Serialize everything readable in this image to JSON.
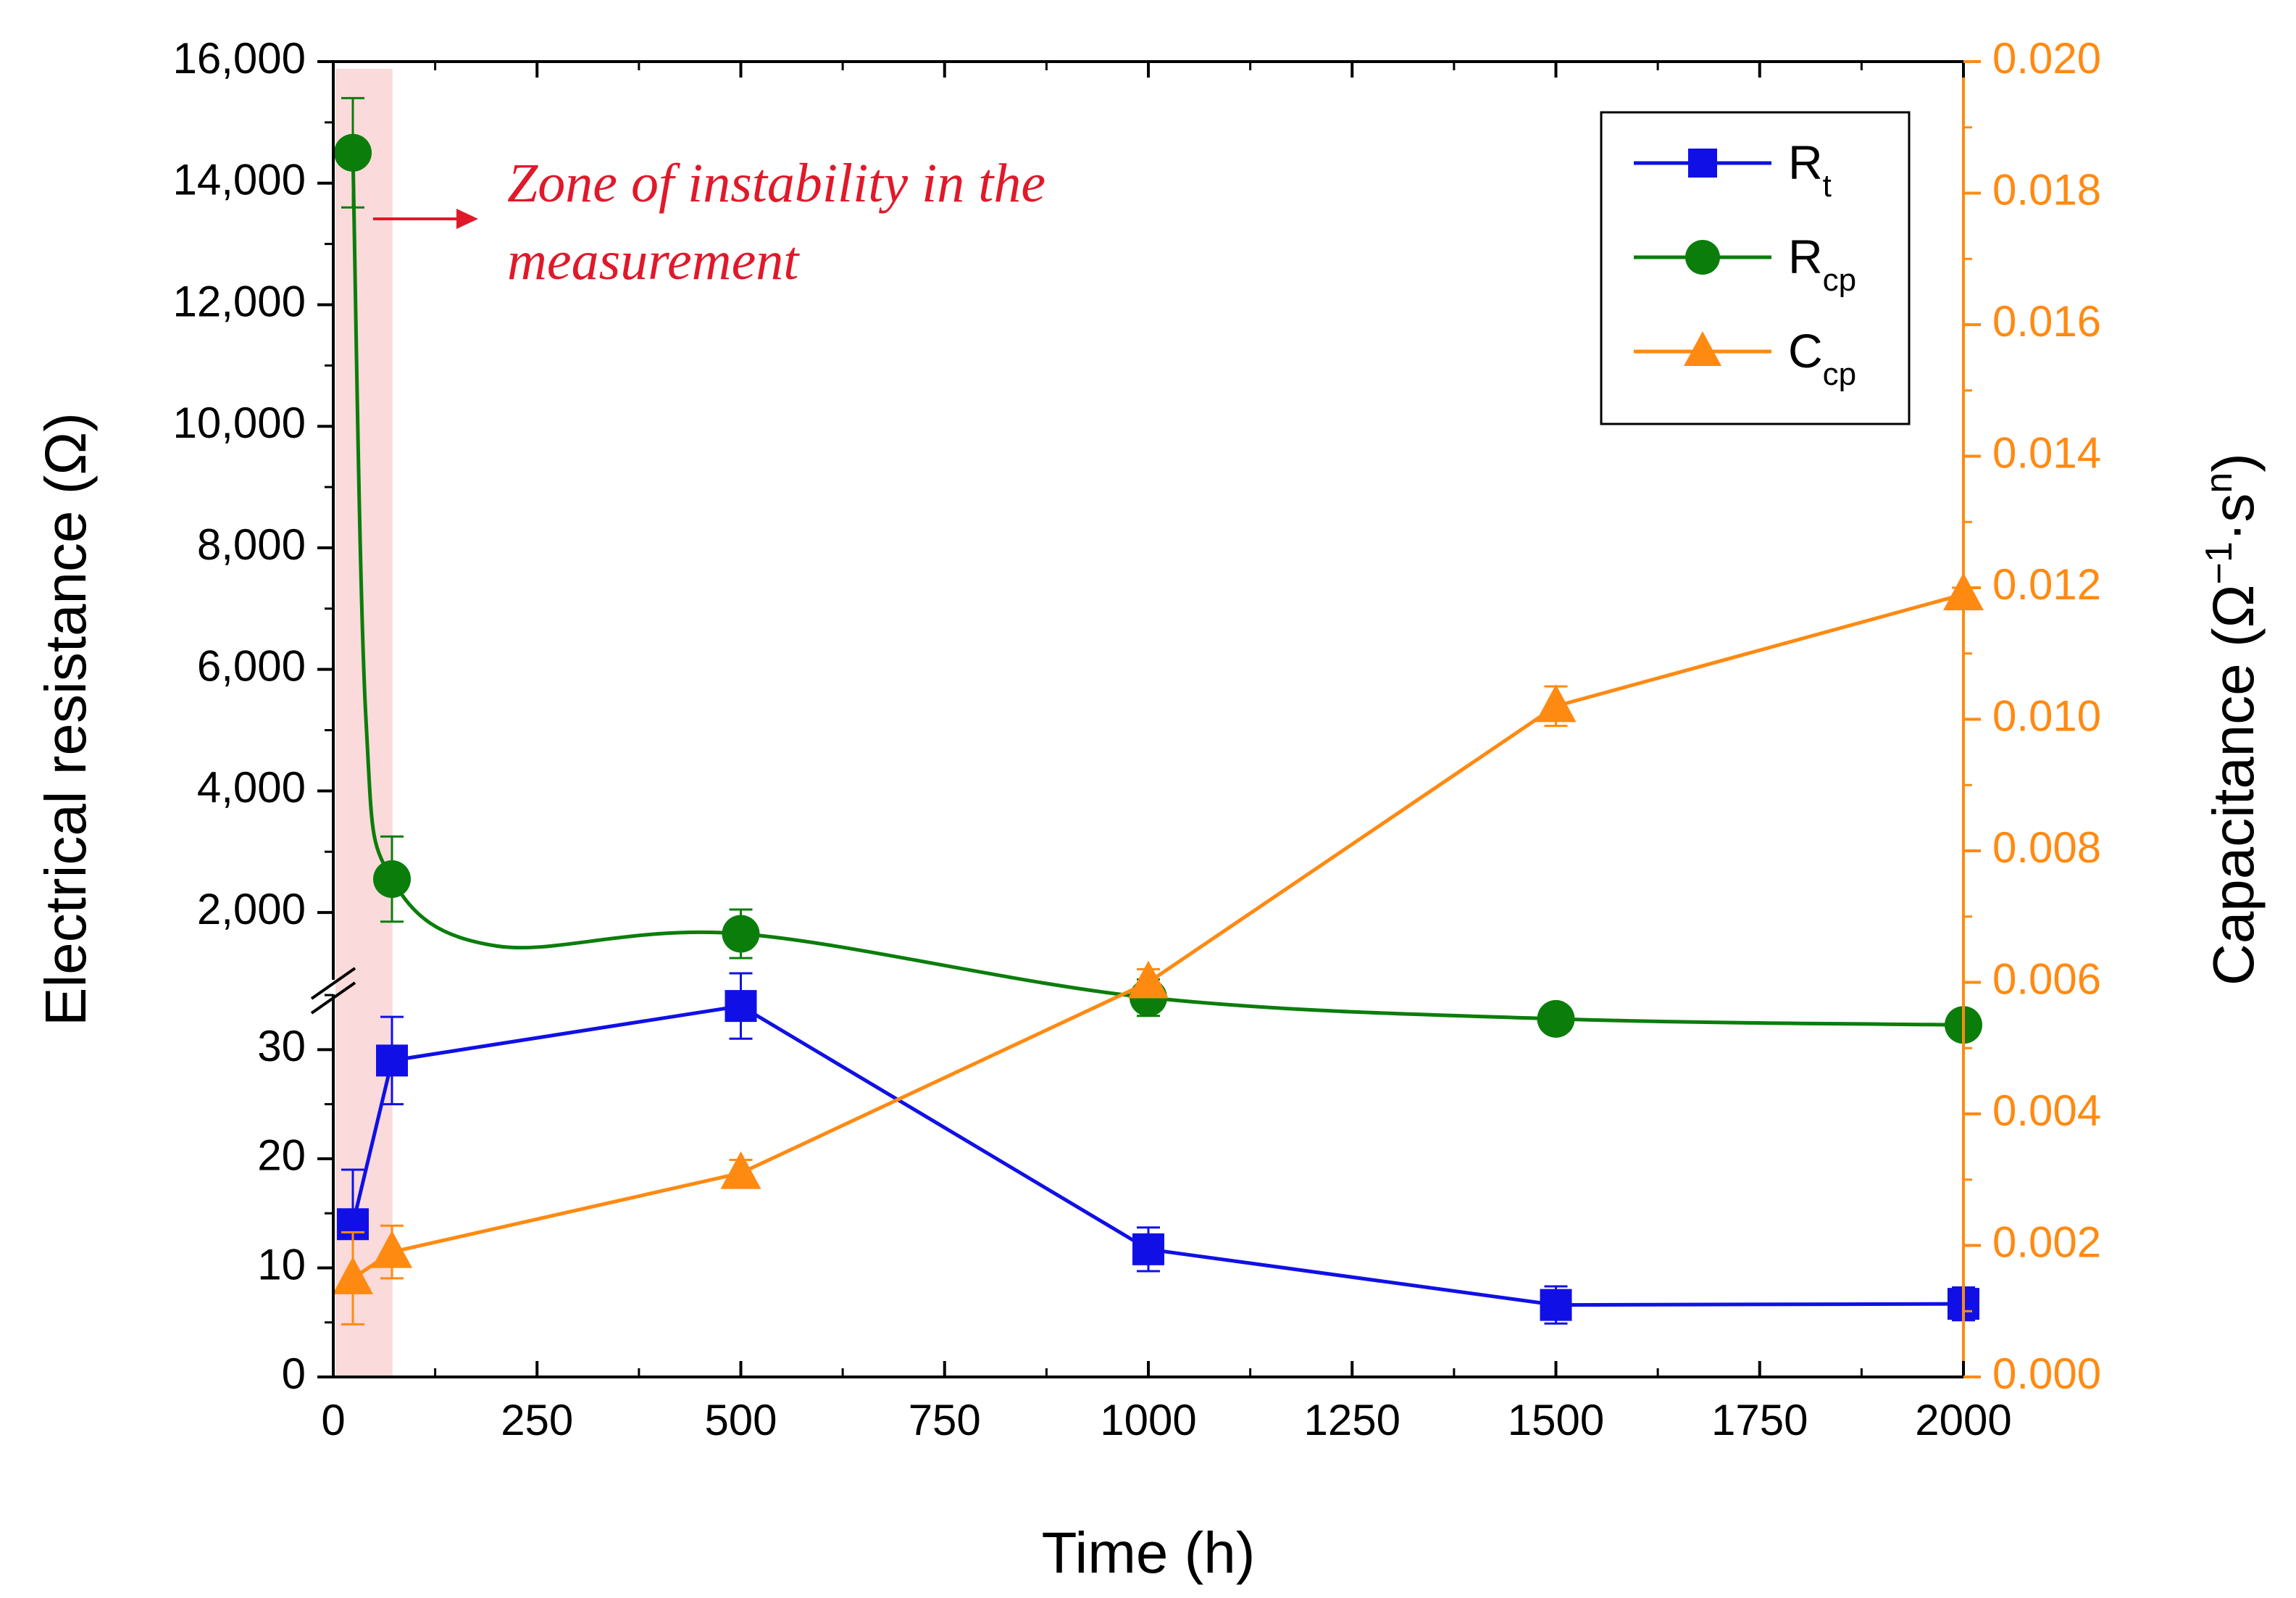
{
  "chart_data": {
    "type": "line",
    "xlabel": "Time (h)",
    "ylabel": "Electrical resistance (Ω)",
    "y2label_main": "Capacitance (Ω",
    "y2label_exp": "−1",
    "y2label_mid": "·s",
    "y2label_exp2": "n",
    "y2label_end": ")",
    "xlim": [
      0,
      2000
    ],
    "x_ticks": [
      "0",
      "250",
      "500",
      "750",
      "1000",
      "1250",
      "1500",
      "1750",
      "2000"
    ],
    "y_upper_ticks": [
      "2,000",
      "4,000",
      "6,000",
      "8,000",
      "10,000",
      "12,000",
      "14,000",
      "16,000"
    ],
    "y_lower_ticks": [
      "0",
      "10",
      "20",
      "30"
    ],
    "y2_ticks": [
      "0.000",
      "0.002",
      "0.004",
      "0.006",
      "0.008",
      "0.010",
      "0.012",
      "0.014",
      "0.016",
      "0.018",
      "0.020"
    ],
    "ylim_lower": [
      0,
      36
    ],
    "ylim_upper": [
      0,
      16000
    ],
    "ylim_right": [
      0,
      0.02
    ],
    "annotation": {
      "line1": "Zone of instability in the",
      "line2": "measurement",
      "zone_x": [
        0,
        70
      ],
      "color": "#e0192a"
    },
    "series": [
      {
        "name": "R",
        "sub": "t",
        "color": "#1010e6",
        "marker": "square",
        "axis": "left-lower",
        "x": [
          24,
          72,
          500,
          1000,
          1500,
          2000
        ],
        "values": [
          14,
          29,
          34,
          11.7,
          6.6,
          6.7
        ],
        "err": [
          5,
          4,
          3,
          2,
          1.7,
          1.5
        ]
      },
      {
        "name": "R",
        "sub": "cp",
        "color": "#0b7d0b",
        "marker": "circle",
        "axis": "left-upper",
        "x": [
          24,
          72,
          500,
          1000,
          1500,
          2000
        ],
        "values": [
          14500,
          2550,
          1650,
          600,
          250,
          150
        ],
        "err": [
          900,
          700,
          400,
          300,
          0,
          0
        ]
      },
      {
        "name": "C",
        "sub": "cp",
        "color": "#ff8a12",
        "marker": "triangle",
        "axis": "right",
        "x": [
          24,
          72,
          500,
          1000,
          1500,
          2000
        ],
        "values": [
          0.0015,
          0.0019,
          0.0031,
          0.006,
          0.0102,
          0.0119
        ],
        "err": [
          0.0007,
          0.0004,
          0.0002,
          0.0002,
          0.0003,
          0.0001
        ]
      }
    ]
  }
}
